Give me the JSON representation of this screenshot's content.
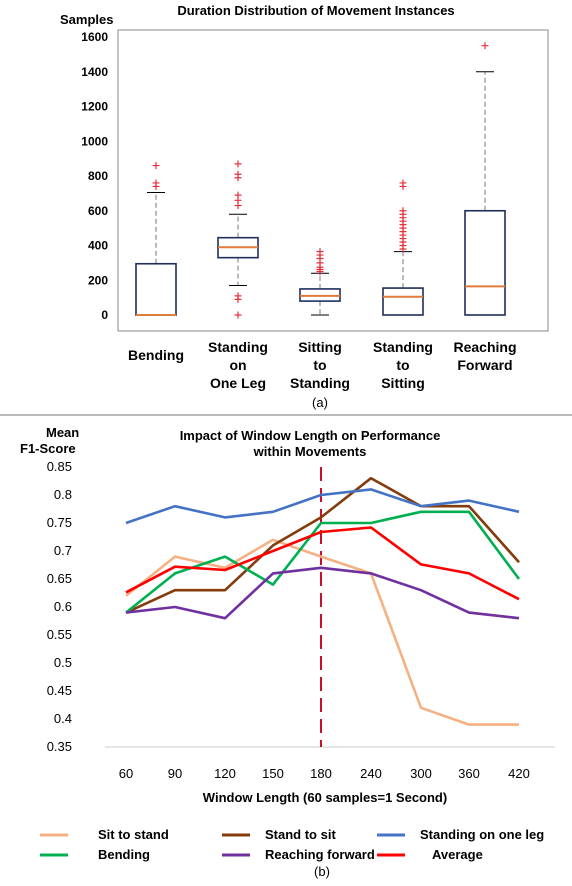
{
  "chart_data": [
    {
      "type": "box",
      "title": "Duration Distribution of Movement Instances",
      "ylabel": "Samples",
      "xlabel": "",
      "ylim": [
        -80,
        1650
      ],
      "yticks": [
        0,
        200,
        400,
        600,
        800,
        1000,
        1200,
        1400,
        1600
      ],
      "caption": "(a)",
      "colors": {
        "box": "#1f2d5a",
        "median": "#e07b39",
        "whisker": "#777777",
        "outlier": "#e8303a"
      },
      "categories": [
        {
          "lines": [
            "Bending"
          ]
        },
        {
          "lines": [
            "Standing",
            "on",
            "One Leg"
          ]
        },
        {
          "lines": [
            "Sitting",
            "to",
            "Standing"
          ]
        },
        {
          "lines": [
            "Standing",
            "to",
            "Sitting"
          ]
        },
        {
          "lines": [
            "Reaching",
            "Forward"
          ]
        }
      ],
      "boxes": [
        {
          "min": 0,
          "q1": 0,
          "median": 0,
          "q3": 295,
          "max": 705,
          "outliers": [
            740,
            760,
            860
          ]
        },
        {
          "min": 170,
          "q1": 330,
          "median": 390,
          "q3": 445,
          "max": 580,
          "outliers": [
            0,
            90,
            110,
            630,
            660,
            690,
            790,
            810,
            870
          ]
        },
        {
          "min": 0,
          "q1": 80,
          "median": 110,
          "q3": 150,
          "max": 240,
          "outliers": [
            250,
            262,
            275,
            300,
            325,
            345,
            365
          ]
        },
        {
          "min": 0,
          "q1": 0,
          "median": 105,
          "q3": 155,
          "max": 365,
          "outliers": [
            380,
            400,
            420,
            440,
            460,
            480,
            500,
            520,
            540,
            560,
            580,
            600,
            740,
            760
          ]
        },
        {
          "min": 0,
          "q1": 0,
          "median": 165,
          "q3": 600,
          "max": 1400,
          "outliers": [
            1550
          ]
        }
      ]
    },
    {
      "type": "line",
      "title": "Impact of Window Length on Performance within Movements",
      "title_lines": [
        "Impact of Window Length on Performance",
        "within Movements"
      ],
      "ylabel": "Mean F1-Score",
      "ylabel_lines": [
        "Mean",
        "F1-Score"
      ],
      "xlabel": "Window Length (60 samples=1 Second)",
      "x": [
        60,
        90,
        120,
        150,
        180,
        240,
        300,
        360,
        420
      ],
      "ylim": [
        0.35,
        0.85
      ],
      "yticks": [
        0.35,
        0.4,
        0.45,
        0.5,
        0.55,
        0.6,
        0.65,
        0.7,
        0.75,
        0.8,
        0.85
      ],
      "yticks_labels": [
        "0.35",
        "0.4",
        "0.45",
        "0.5",
        "0.55",
        "0.6",
        "0.65",
        "0.7",
        "0.75",
        "0.8",
        "0.85"
      ],
      "marker_x": 180,
      "marker_color": "#c8102e",
      "caption": "(b)",
      "series": [
        {
          "name": "Sit to stand",
          "color": "#f5b183",
          "values": [
            0.62,
            0.69,
            0.67,
            0.72,
            0.69,
            0.66,
            0.42,
            0.39,
            0.39
          ]
        },
        {
          "name": "Stand to sit",
          "color": "#843c0c",
          "values": [
            0.59,
            0.63,
            0.63,
            0.71,
            0.76,
            0.83,
            0.78,
            0.78,
            0.68
          ]
        },
        {
          "name": "Standing on one leg",
          "color": "#4472c4",
          "values": [
            0.75,
            0.78,
            0.76,
            0.77,
            0.8,
            0.81,
            0.78,
            0.79,
            0.77
          ]
        },
        {
          "name": "Bending",
          "color": "#00b050",
          "values": [
            0.59,
            0.66,
            0.69,
            0.64,
            0.75,
            0.75,
            0.77,
            0.77,
            0.65
          ]
        },
        {
          "name": "Reaching forward",
          "color": "#7030a0",
          "values": [
            0.59,
            0.6,
            0.58,
            0.66,
            0.67,
            0.66,
            0.63,
            0.59,
            0.58
          ]
        },
        {
          "name": "Average",
          "color": "#ff0000",
          "values": [
            0.626,
            0.672,
            0.666,
            0.7,
            0.734,
            0.742,
            0.676,
            0.66,
            0.614
          ]
        }
      ]
    }
  ]
}
